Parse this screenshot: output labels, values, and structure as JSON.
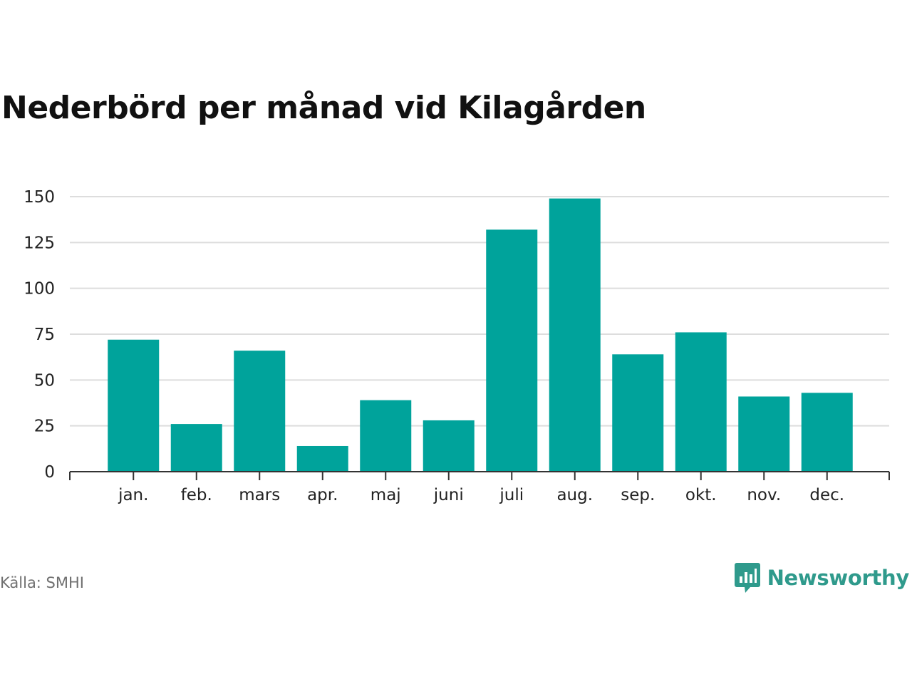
{
  "title": "Nederbörd per månad vid Kilagården",
  "source": "Källa: SMHI",
  "brand": {
    "name": "Newsworthy",
    "icon": "speech-bubble-chart-icon",
    "color": "#2f9a8c"
  },
  "chart_data": {
    "type": "bar",
    "categories": [
      "jan.",
      "feb.",
      "mars",
      "apr.",
      "maj",
      "juni",
      "juli",
      "aug.",
      "sep.",
      "okt.",
      "nov.",
      "dec."
    ],
    "values": [
      72,
      26,
      66,
      14,
      39,
      28,
      132,
      149,
      64,
      76,
      41,
      43
    ],
    "ylim": [
      0,
      150
    ],
    "yticks": [
      0,
      25,
      50,
      75,
      100,
      125,
      150
    ],
    "bar_color": "#00a39b",
    "grid": true
  }
}
